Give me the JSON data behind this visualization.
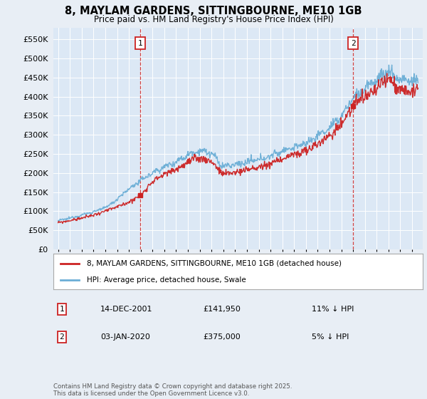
{
  "title": "8, MAYLAM GARDENS, SITTINGBOURNE, ME10 1GB",
  "subtitle": "Price paid vs. HM Land Registry's House Price Index (HPI)",
  "legend_line1": "8, MAYLAM GARDENS, SITTINGBOURNE, ME10 1GB (detached house)",
  "legend_line2": "HPI: Average price, detached house, Swale",
  "annotation1_label": "1",
  "annotation1_date": "14-DEC-2001",
  "annotation1_price": "£141,950",
  "annotation1_hpi": "11% ↓ HPI",
  "annotation2_label": "2",
  "annotation2_date": "03-JAN-2020",
  "annotation2_price": "£375,000",
  "annotation2_hpi": "5% ↓ HPI",
  "footer": "Contains HM Land Registry data © Crown copyright and database right 2025.\nThis data is licensed under the Open Government Licence v3.0.",
  "sale1_year": 2001.96,
  "sale1_value": 141950,
  "sale2_year": 2020.01,
  "sale2_value": 375000,
  "hpi_color": "#6baed6",
  "price_color": "#cc2222",
  "annotation_box_color": "#cc2222",
  "vline_color": "#cc2222",
  "bg_color": "#e8eef5",
  "plot_bg": "#dce8f5",
  "ylim_max": 580000,
  "ylim_min": 0,
  "grid_color": "#ffffff",
  "ylabel_step": 50000
}
